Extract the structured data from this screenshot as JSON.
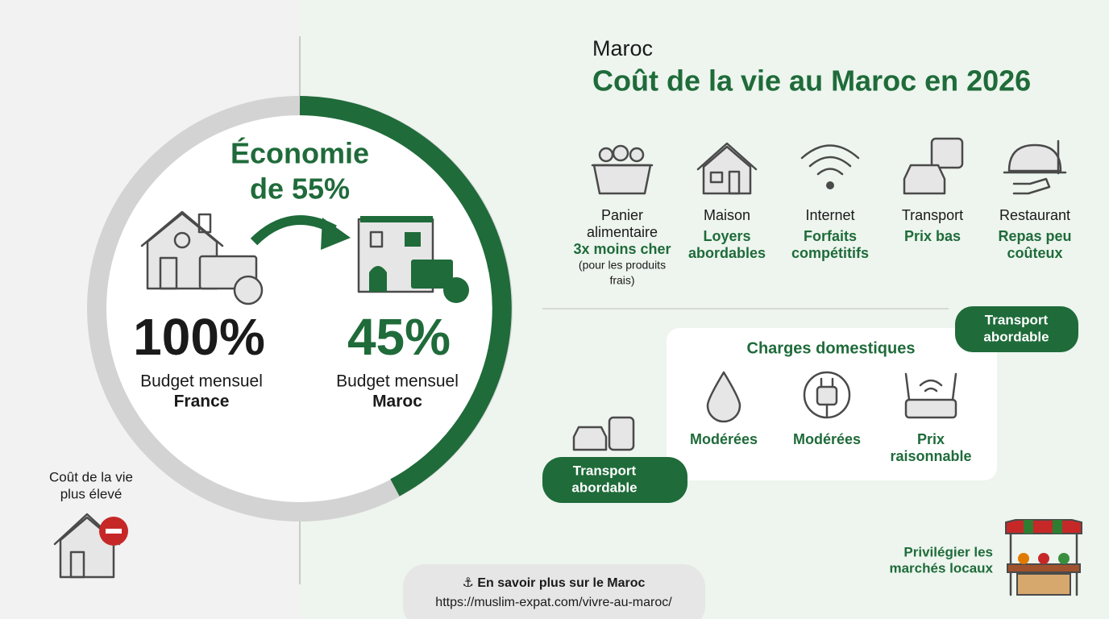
{
  "header": {
    "subtitle": "Maroc",
    "title": "Coût de la vie au Maroc en 2026"
  },
  "comparison": {
    "savings": [
      "Économie",
      "de 55%"
    ],
    "france": {
      "percent": "100%",
      "label": "Budget mensuel",
      "country": "France"
    },
    "maroc": {
      "percent": "45%",
      "label": "Budget mensuel",
      "country": "Maroc"
    }
  },
  "warning": [
    "Coût de la vie",
    "plus élevé"
  ],
  "categories": [
    {
      "label": [
        "Panier",
        "alimentaire"
      ],
      "detail": [
        "3x moins cher"
      ],
      "note": [
        "(pour les produits",
        "frais)"
      ]
    },
    {
      "label": [
        "Maison"
      ],
      "detail": [
        "Loyers",
        "abordables"
      ]
    },
    {
      "label": [
        "Internet"
      ],
      "detail": [
        "Forfaits",
        "compétitifs"
      ]
    },
    {
      "label": [
        "Transport"
      ],
      "detail": [
        "Prix bas"
      ]
    },
    {
      "label": [
        "Restaurant"
      ],
      "detail": [
        "Repas peu",
        "coûteux"
      ]
    }
  ],
  "tag_top": [
    "Transport",
    "abordable"
  ],
  "charges": {
    "title": "Charges domestiques",
    "items": [
      [
        "Modérées"
      ],
      [
        "Modérées"
      ],
      [
        "Prix",
        "raisonnable"
      ]
    ]
  },
  "tag_bottom": [
    "Transport",
    "abordable"
  ],
  "markets": [
    "Privilégier les",
    "marchés locaux"
  ],
  "footer": {
    "link_text": "⚓ En savoir plus sur le Maroc",
    "url": "https://muslim-expat.com/vivre-au-maroc/"
  }
}
